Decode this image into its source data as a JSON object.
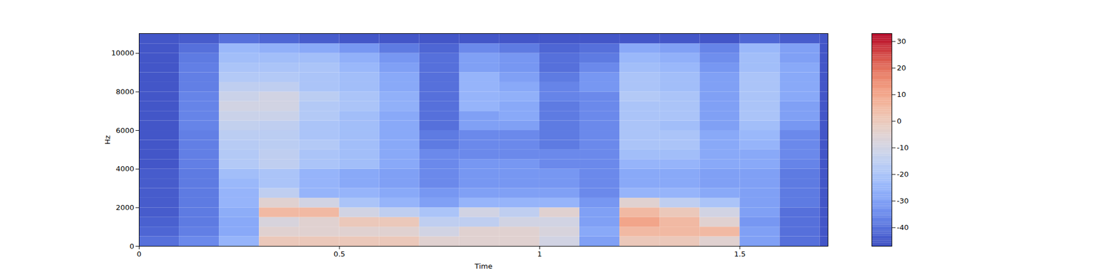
{
  "chart_data": {
    "type": "spectrogram",
    "x_label": "Time",
    "y_label": "Hz",
    "xlim": [
      0,
      1.72
    ],
    "ylim": [
      0,
      11025
    ],
    "xticks": [
      0,
      0.5,
      1,
      1.5
    ],
    "yticks": [
      0,
      2000,
      4000,
      6000,
      8000,
      10000
    ],
    "time_bins": [
      0,
      0.1,
      0.2,
      0.3,
      0.4,
      0.5,
      0.6,
      0.7,
      0.8,
      0.9,
      1.0,
      1.1,
      1.2,
      1.3,
      1.4,
      1.5,
      1.6,
      1.7,
      1.72
    ],
    "frequency_bins": [
      0,
      500,
      1000,
      1500,
      2000,
      2500,
      3000,
      3500,
      4000,
      4500,
      5000,
      5500,
      6000,
      6500,
      7000,
      7500,
      8000,
      8500,
      9000,
      9500,
      10000,
      10500,
      11025
    ],
    "values": [
      [
        -40,
        -42,
        -43,
        -44,
        -44,
        -44,
        -44,
        -44,
        -45,
        -45,
        -45,
        -45,
        -45,
        -45,
        -45,
        -45,
        -45,
        -45,
        -45,
        -45,
        -45,
        -45
      ],
      [
        -35,
        -37,
        -38,
        -38,
        -38,
        -38,
        -38,
        -38,
        -37,
        -37,
        -37,
        -37,
        -36,
        -36,
        -36,
        -36,
        -37,
        -37,
        -37,
        -38,
        -40,
        -44
      ],
      [
        -25,
        -28,
        -28,
        -27,
        -25,
        -25,
        -24,
        -22,
        -18,
        -18,
        -17,
        -16,
        -14,
        -12,
        -10,
        -12,
        -15,
        -18,
        -20,
        -22,
        -24,
        -40
      ],
      [
        0,
        -5,
        -8,
        5,
        -5,
        -15,
        -20,
        -20,
        -15,
        -15,
        -16,
        -16,
        -15,
        -12,
        -10,
        -10,
        -15,
        -18,
        -20,
        -22,
        -26,
        -42
      ],
      [
        0,
        -5,
        -5,
        5,
        -10,
        -25,
        -25,
        -25,
        -20,
        -20,
        -18,
        -20,
        -20,
        -18,
        -18,
        -16,
        -20,
        -20,
        -20,
        -22,
        -28,
        -44
      ],
      [
        0,
        -5,
        0,
        -10,
        -20,
        -25,
        -28,
        -28,
        -22,
        -22,
        -22,
        -22,
        -22,
        -22,
        -20,
        -20,
        -22,
        -22,
        -24,
        -26,
        -32,
        -45
      ],
      [
        0,
        -5,
        0,
        -15,
        -25,
        -28,
        -30,
        -30,
        -28,
        -28,
        -28,
        -28,
        -28,
        -28,
        -26,
        -26,
        -28,
        -28,
        -30,
        -32,
        -38,
        -45
      ],
      [
        -5,
        -10,
        -15,
        -20,
        -30,
        -32,
        -35,
        -35,
        -35,
        -35,
        -38,
        -38,
        -40,
        -40,
        -40,
        -40,
        -40,
        -40,
        -40,
        -40,
        -42,
        -45
      ],
      [
        -5,
        -5,
        -15,
        -10,
        -25,
        -30,
        -32,
        -32,
        -32,
        -35,
        -35,
        -35,
        -30,
        -30,
        -25,
        -25,
        -25,
        -25,
        -30,
        -30,
        -35,
        -45
      ],
      [
        -5,
        -5,
        -10,
        -15,
        -25,
        -30,
        -32,
        -32,
        -32,
        -35,
        -35,
        -35,
        -30,
        -28,
        -28,
        -26,
        -28,
        -30,
        -32,
        -32,
        -38,
        -45
      ],
      [
        -10,
        -8,
        -10,
        -5,
        -25,
        -30,
        -32,
        -32,
        -35,
        -35,
        -38,
        -38,
        -38,
        -38,
        -38,
        -36,
        -36,
        -38,
        -40,
        -40,
        -42,
        -45
      ],
      [
        -30,
        -28,
        -30,
        -30,
        -32,
        -35,
        -35,
        -35,
        -35,
        -35,
        -35,
        -35,
        -35,
        -35,
        -35,
        -35,
        -32,
        -32,
        -35,
        -38,
        -40,
        -45
      ],
      [
        0,
        5,
        10,
        5,
        -5,
        -25,
        -28,
        -28,
        -25,
        -22,
        -20,
        -20,
        -20,
        -20,
        -20,
        -18,
        -20,
        -20,
        -22,
        -24,
        -28,
        -45
      ],
      [
        0,
        5,
        5,
        0,
        -15,
        -25,
        -28,
        -28,
        -25,
        -22,
        -20,
        -20,
        -22,
        -20,
        -20,
        -20,
        -22,
        -22,
        -24,
        -26,
        -30,
        -45
      ],
      [
        -5,
        5,
        -5,
        -10,
        -20,
        -28,
        -30,
        -30,
        -28,
        -28,
        -28,
        -28,
        -30,
        -30,
        -30,
        -30,
        -30,
        -30,
        -32,
        -34,
        -36,
        -45
      ],
      [
        -30,
        -30,
        -32,
        -30,
        -30,
        -30,
        -30,
        -30,
        -28,
        -28,
        -25,
        -24,
        -22,
        -20,
        -20,
        -20,
        -20,
        -20,
        -22,
        -22,
        -24,
        -42
      ],
      [
        -40,
        -40,
        -40,
        -40,
        -38,
        -38,
        -38,
        -38,
        -36,
        -35,
        -35,
        -35,
        -32,
        -30,
        -30,
        -28,
        -28,
        -28,
        -28,
        -30,
        -30,
        -44
      ],
      [
        -45,
        -45,
        -45,
        -45,
        -45,
        -45,
        -45,
        -45,
        -45,
        -45,
        -45,
        -45,
        -45,
        -45,
        -45,
        -45,
        -45,
        -45,
        -45,
        -45,
        -45,
        -45
      ]
    ],
    "colorbar": {
      "range": [
        -47,
        33
      ],
      "ticks": [
        -40,
        -30,
        -20,
        -10,
        0,
        10,
        20,
        30
      ]
    }
  }
}
